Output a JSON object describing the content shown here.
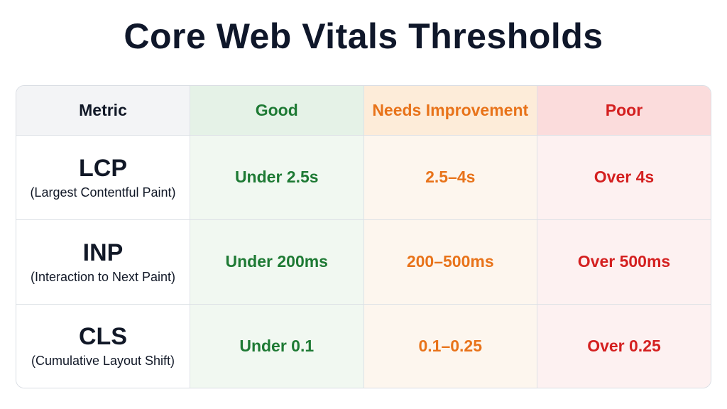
{
  "title": "Core Web Vitals Thresholds",
  "table": {
    "header": [
      "Metric",
      "Good",
      "Needs Improvement",
      "Poor"
    ],
    "rows": [
      {
        "metric": "LCP",
        "name": "(Largest Contentful Paint)",
        "good": "Under 2.5s",
        "needs": "2.5–4s",
        "poor": "Over 4s"
      },
      {
        "metric": "INP",
        "name": "(Interaction to Next Paint)",
        "good": "Under 200ms",
        "needs": "200–500ms",
        "poor": "Over 500ms"
      },
      {
        "metric": "CLS",
        "name": "(Cumulative Layout Shift)",
        "good": "Under 0.1",
        "needs": "0.1–0.25",
        "poor": "Over 0.25"
      }
    ]
  }
}
